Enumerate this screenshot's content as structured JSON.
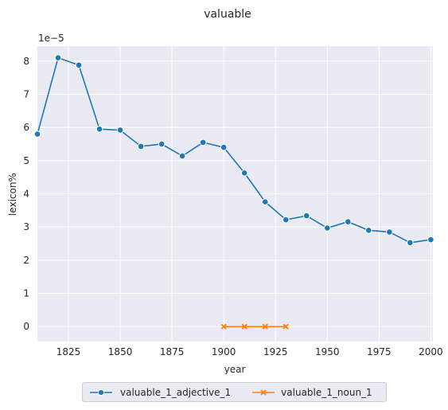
{
  "chart_data": {
    "type": "line",
    "title": "valuable",
    "xlabel": "year",
    "ylabel": "lexicon%",
    "y_multiplier_label": "1e−5",
    "xlim": [
      1810,
      2001
    ],
    "ylim": [
      -0.45,
      8.45
    ],
    "x_ticks": [
      1825,
      1850,
      1875,
      1900,
      1925,
      1950,
      1975,
      2000
    ],
    "y_ticks": [
      0,
      1,
      2,
      3,
      4,
      5,
      6,
      7,
      8
    ],
    "grid": true,
    "legend_position": "bottom-center",
    "series": [
      {
        "name": "valuable_1_adjective_1",
        "color": "#1f77b4",
        "marker": "circle",
        "x": [
          1810,
          1820,
          1830,
          1840,
          1850,
          1860,
          1870,
          1880,
          1890,
          1900,
          1910,
          1920,
          1930,
          1940,
          1950,
          1960,
          1970,
          1980,
          1990,
          2000
        ],
        "y": [
          5.8,
          8.1,
          7.88,
          5.95,
          5.92,
          5.43,
          5.5,
          5.14,
          5.55,
          5.4,
          4.63,
          3.76,
          3.22,
          3.34,
          2.97,
          3.16,
          2.9,
          2.85,
          2.53,
          2.62
        ]
      },
      {
        "name": "valuable_1_noun_1",
        "color": "#ff7f0e",
        "marker": "x",
        "x": [
          1900,
          1910,
          1920,
          1930
        ],
        "y": [
          0,
          0,
          0,
          0
        ]
      }
    ]
  }
}
